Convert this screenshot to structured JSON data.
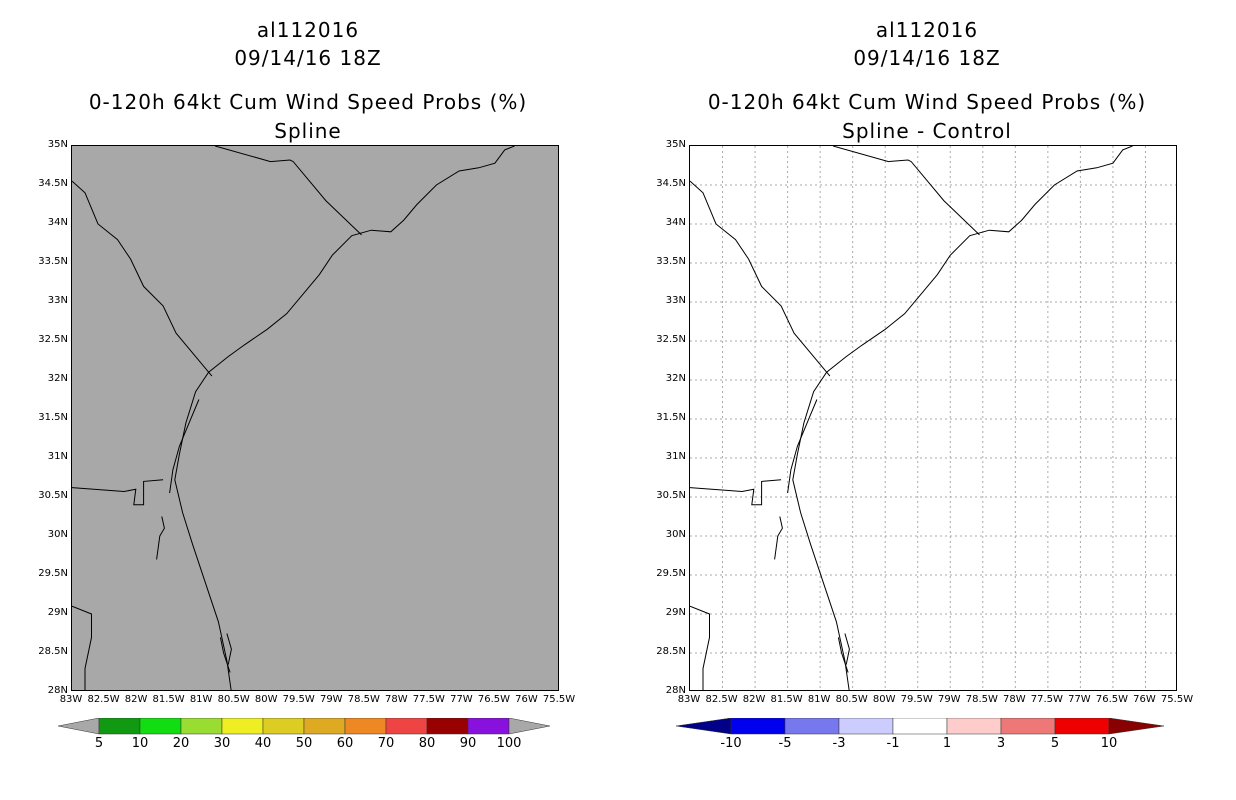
{
  "left_panel": {
    "storm_id": "al112016",
    "datetime": "09/14/16 18Z",
    "product": "0-120h 64kt Cum Wind Speed Probs (%)",
    "subtitle": "Spline",
    "background": "#a8a8a8"
  },
  "right_panel": {
    "storm_id": "al112016",
    "datetime": "09/14/16 18Z",
    "product": "0-120h 64kt Cum Wind Speed Probs (%)",
    "subtitle": "Spline - Control",
    "background": "#ffffff"
  },
  "lat_labels": [
    "35N",
    "34.5N",
    "34N",
    "33.5N",
    "33N",
    "32.5N",
    "32N",
    "31.5N",
    "31N",
    "30.5N",
    "30N",
    "29.5N",
    "29N",
    "28.5N",
    "28N"
  ],
  "lon_labels": [
    "83W",
    "82.5W",
    "82W",
    "81.5W",
    "81W",
    "80.5W",
    "80W",
    "79.5W",
    "79W",
    "78.5W",
    "78W",
    "77.5W",
    "77W",
    "76.5W",
    "76W",
    "75.5W"
  ],
  "map_extent": {
    "lat_min": 28,
    "lat_max": 35,
    "lon_min": -83,
    "lon_max": -75.5
  },
  "left_colorbar": {
    "colors": [
      "#119911",
      "#11dd11",
      "#99dd33",
      "#eeee22",
      "#ddcc22",
      "#ddaa22",
      "#ee8822",
      "#ee4444",
      "#990000",
      "#8811dd"
    ],
    "end_color": "#a8a8a8",
    "labels": [
      "5",
      "10",
      "20",
      "30",
      "40",
      "50",
      "60",
      "70",
      "80",
      "90",
      "100"
    ]
  },
  "right_colorbar": {
    "left_end_color": "#000088",
    "right_end_color": "#880000",
    "colors": [
      "#0000ee",
      "#7777ee",
      "#ccccff",
      "#ffffff",
      "#ffcccc",
      "#ee7777",
      "#ee0000"
    ],
    "labels": [
      "-10",
      "-5",
      "-3",
      "-1",
      "1",
      "3",
      "5",
      "10"
    ]
  }
}
